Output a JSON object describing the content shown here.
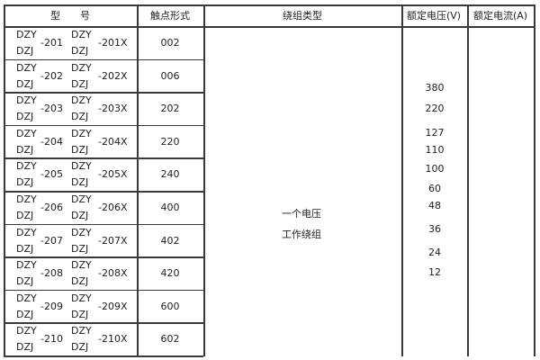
{
  "headers": {
    "model": "型　　号",
    "contact": "触点形式",
    "winding": "绕组类型",
    "voltage": "额定电压(V)",
    "current": "额定电流(A)"
  },
  "rows": [
    {
      "top": "DZY",
      "bottom": "DZJ",
      "num": "-201",
      "num_x": "-201X",
      "contact": "002"
    },
    {
      "top": "DZY",
      "bottom": "DZJ",
      "num": "-202",
      "num_x": "-202X",
      "contact": "006"
    },
    {
      "top": "DZY",
      "bottom": "DZJ",
      "num": "-203",
      "num_x": "-203X",
      "contact": "202"
    },
    {
      "top": "DZY",
      "bottom": "DZJ",
      "num": "-204",
      "num_x": "-204X",
      "contact": "220"
    },
    {
      "top": "DZY",
      "bottom": "DZJ",
      "num": "-205",
      "num_x": "-205X",
      "contact": "240"
    },
    {
      "top": "DZY",
      "bottom": "DZJ",
      "num": "-206",
      "num_x": "-206X",
      "contact": "400"
    },
    {
      "top": "DZY",
      "bottom": "DZJ",
      "num": "-207",
      "num_x": "-207X",
      "contact": "402"
    },
    {
      "top": "DZY",
      "bottom": "DZJ",
      "num": "-208",
      "num_x": "-208X",
      "contact": "420"
    },
    {
      "top": "DZY",
      "bottom": "DZJ",
      "num": "-209",
      "num_x": "-209X",
      "contact": "600"
    },
    {
      "top": "DZY",
      "bottom": "DZJ",
      "num": "-210",
      "num_x": "-210X",
      "contact": "602"
    }
  ],
  "winding": {
    "line1": "一个电压",
    "line2": "工作绕组"
  },
  "voltages": [
    "380",
    "220",
    "127",
    "110",
    "100",
    "60",
    "48",
    "36",
    "24",
    "12"
  ]
}
